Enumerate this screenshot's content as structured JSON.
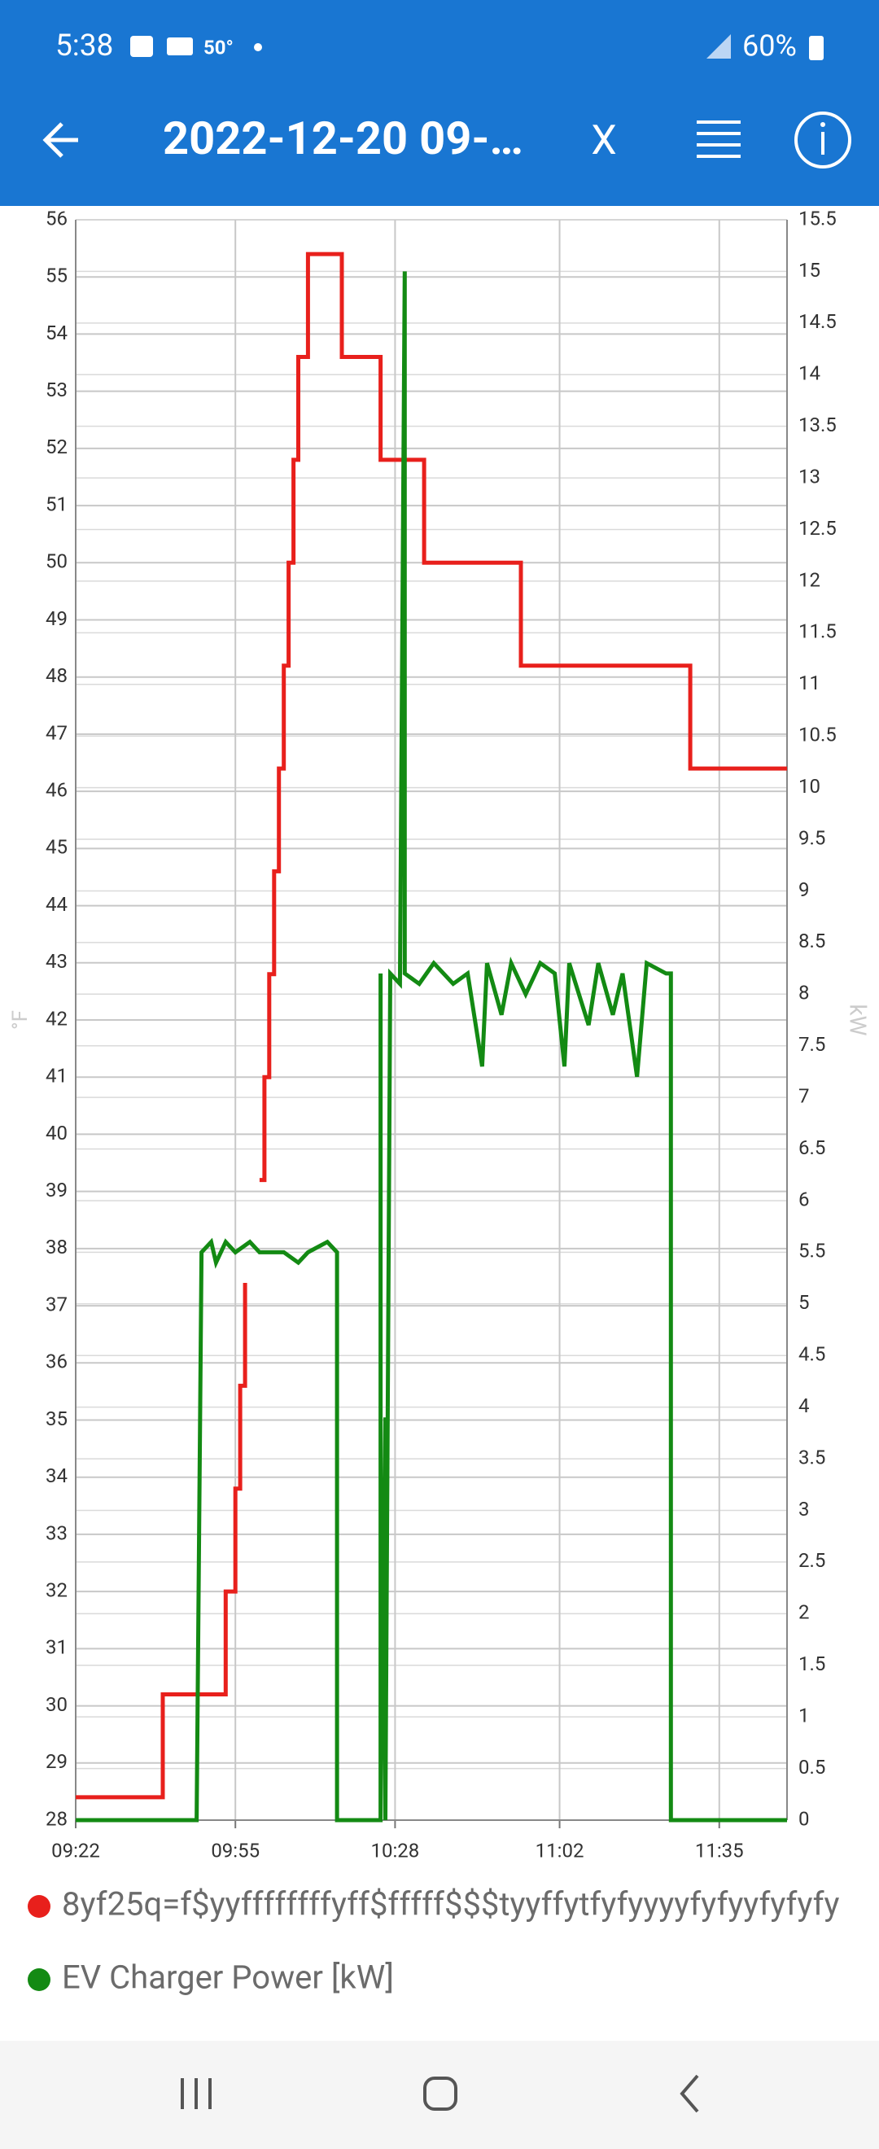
{
  "status_bar": {
    "time": "5:38",
    "temperature": "50°",
    "battery": "60%"
  },
  "app_bar": {
    "title": "2022-12-20 09-…",
    "close": "X"
  },
  "chart_data": {
    "type": "line",
    "x_format": "HH:MM",
    "xlim": [
      "09:22",
      "11:49"
    ],
    "xticks": [
      "09:22",
      "09:55",
      "10:28",
      "11:02",
      "11:35"
    ],
    "ylim": [
      28,
      56
    ],
    "yticks": [
      28,
      29,
      30,
      31,
      32,
      33,
      34,
      35,
      36,
      37,
      38,
      39,
      40,
      41,
      42,
      43,
      44,
      45,
      46,
      47,
      48,
      49,
      50,
      51,
      52,
      53,
      54,
      55,
      56
    ],
    "y2lim": [
      0,
      15.5
    ],
    "y2ticks": [
      0,
      0.5,
      1,
      1.5,
      2,
      2.5,
      3,
      3.5,
      4,
      4.5,
      5,
      5.5,
      6,
      6.5,
      7,
      7.5,
      8,
      8.5,
      9,
      9.5,
      10,
      10.5,
      11,
      11.5,
      12,
      12.5,
      13,
      13.5,
      14,
      14.5,
      15,
      15.5
    ],
    "ylabel": "°F",
    "y2label": "kW",
    "grid": true,
    "series": [
      {
        "name": "8yf25q=f$yyffffffffyff$fffff$$$tyyffytfyfyyyyfyfyyfyfyfy",
        "color": "#e8201c",
        "axis": "y",
        "x": [
          "09:22",
          "09:40",
          "09:40",
          "09:53",
          "09:53",
          "09:55",
          "09:55",
          "09:56",
          "09:56",
          "09:57",
          "09:57",
          null,
          "10:00",
          "10:01",
          "10:01",
          "10:02",
          "10:02",
          "10:03",
          "10:03",
          "10:04",
          "10:04",
          "10:05",
          "10:05",
          "10:06",
          "10:06",
          "10:07",
          "10:07",
          "10:08",
          "10:08",
          "10:10",
          "10:10",
          "10:17",
          "10:17",
          "10:25",
          "10:25",
          "10:34",
          "10:34",
          "10:54",
          "10:54",
          "11:29",
          "11:29",
          "11:49"
        ],
        "y": [
          28.4,
          28.4,
          30.2,
          30.2,
          32,
          32,
          33.8,
          33.8,
          35.6,
          35.6,
          37.4,
          null,
          39.2,
          39.2,
          41,
          41,
          42.8,
          42.8,
          44.6,
          44.6,
          46.4,
          46.4,
          48.2,
          48.2,
          50,
          50,
          51.8,
          51.8,
          53.6,
          53.6,
          55.4,
          55.4,
          53.6,
          53.6,
          51.8,
          51.8,
          50,
          50,
          48.2,
          48.2,
          46.4,
          46.4
        ]
      },
      {
        "name": "EV Charger Power [kW]",
        "color": "#138a13",
        "axis": "y2",
        "x": [
          "09:22",
          "09:47",
          "09:48",
          "09:50",
          "09:51",
          "09:53",
          "09:55",
          "09:58",
          "10:00",
          "10:05",
          "10:08",
          "10:10",
          "10:14",
          "10:16",
          "10:16",
          "10:25",
          "10:25",
          "10:25",
          "10:26",
          "10:26",
          "10:27",
          "10:29",
          "10:30",
          "10:30",
          "10:33",
          "10:36",
          "10:40",
          "10:43",
          "10:45",
          "10:46",
          "10:47",
          "10:50",
          "10:52",
          "10:55",
          "10:58",
          "11:01",
          "11:03",
          "11:04",
          "11:08",
          "11:10",
          "11:13",
          "11:15",
          "11:18",
          "11:20",
          "11:24",
          "11:25",
          "11:25",
          "11:49"
        ],
        "y": [
          0,
          0,
          5.5,
          5.6,
          5.4,
          5.6,
          5.5,
          5.6,
          5.5,
          5.5,
          5.4,
          5.5,
          5.6,
          5.5,
          0,
          0,
          8.2,
          0,
          3.9,
          0,
          8.2,
          8.1,
          15,
          8.2,
          8.1,
          8.3,
          8.1,
          8.2,
          7.6,
          7.3,
          8.3,
          7.8,
          8.3,
          8,
          8.3,
          8.2,
          7.3,
          8.3,
          7.7,
          8.3,
          7.8,
          8.2,
          7.2,
          8.3,
          8.2,
          8.2,
          0,
          0
        ]
      }
    ]
  }
}
